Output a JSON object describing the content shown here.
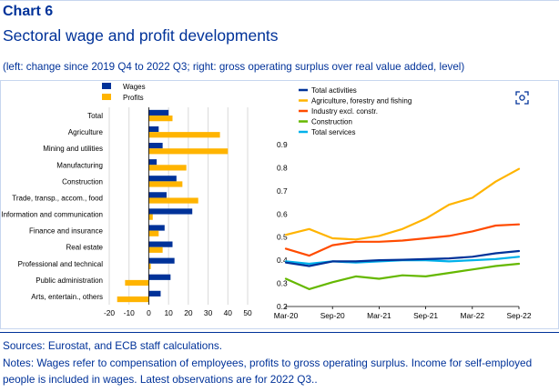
{
  "header": {
    "chart_label": "Chart 6",
    "title": "Sectoral wage and profit developments",
    "subtitle": "(left: change since 2019 Q4 to 2022 Q3; right: gross operating surplus over real value added, level)"
  },
  "expand_icon": "expand-icon",
  "footer": {
    "sources": "Sources: Eurostat, and ECB staff calculations.",
    "notes_line1": "Notes: Wages refer to compensation of employees, profits to gross operating surplus. Income for self-employed",
    "notes_line2": "people is included in wages. Latest observations are for 2022 Q3.."
  },
  "colors": {
    "wages": "#003299",
    "profits": "#FFB400",
    "total_activities": "#003299",
    "agriculture": "#FFB400",
    "industry": "#FF4B00",
    "construction": "#65B800",
    "total_services": "#00B1EA",
    "axis": "#000000",
    "grid": "#d9d9d9"
  },
  "chart_data": [
    {
      "type": "bar",
      "orientation": "horizontal",
      "categories": [
        "Total",
        "Agriculture",
        "Mining and utilities",
        "Manufacturing",
        "Construction",
        "Trade, transp., accom., food",
        "Information and communication",
        "Finance and insurance",
        "Real estate",
        "Professional and technical",
        "Public administration",
        "Arts, entertain., others"
      ],
      "series": [
        {
          "name": "Wages",
          "values": [
            10,
            5,
            7,
            4,
            14,
            9,
            22,
            8,
            12,
            13,
            11,
            6
          ]
        },
        {
          "name": "Profits",
          "values": [
            12,
            36,
            40,
            19,
            17,
            25,
            2,
            5,
            7,
            1,
            -12,
            -16
          ]
        }
      ],
      "xlim": [
        -20,
        50
      ],
      "xticks": [
        -20,
        -10,
        0,
        10,
        20,
        30,
        40,
        50
      ],
      "legend": "top-left",
      "grid": true
    },
    {
      "type": "line",
      "x": [
        "Mar-20",
        "Jun-20",
        "Sep-20",
        "Dec-20",
        "Mar-21",
        "Jun-21",
        "Sep-21",
        "Dec-21",
        "Mar-22",
        "Jun-22",
        "Sep-22"
      ],
      "xticks": [
        "Mar-20",
        "Sep-20",
        "Mar-21",
        "Sep-21",
        "Mar-22",
        "Sep-22"
      ],
      "series": [
        {
          "name": "Total activities",
          "values": [
            0.39,
            0.375,
            0.395,
            0.395,
            0.4,
            0.402,
            0.405,
            0.408,
            0.415,
            0.43,
            0.44
          ]
        },
        {
          "name": "Agriculture, forestry and fishing",
          "values": [
            0.51,
            0.535,
            0.495,
            0.49,
            0.505,
            0.535,
            0.58,
            0.64,
            0.67,
            0.74,
            0.795
          ]
        },
        {
          "name": "Industry excl. constr.",
          "values": [
            0.45,
            0.42,
            0.465,
            0.48,
            0.48,
            0.485,
            0.495,
            0.505,
            0.525,
            0.55,
            0.555
          ]
        },
        {
          "name": "Construction",
          "values": [
            0.32,
            0.275,
            0.305,
            0.33,
            0.32,
            0.335,
            0.33,
            0.345,
            0.36,
            0.375,
            0.385
          ]
        },
        {
          "name": "Total services",
          "values": [
            0.395,
            0.385,
            0.395,
            0.39,
            0.395,
            0.4,
            0.4,
            0.395,
            0.4,
            0.405,
            0.415
          ]
        }
      ],
      "ylim": [
        0.2,
        0.9
      ],
      "yticks": [
        "0.2",
        "0.3",
        "0.4",
        "0.5",
        "0.6",
        "0.7",
        "0.8",
        "0.9"
      ],
      "legend": "top-left",
      "grid": false
    }
  ]
}
